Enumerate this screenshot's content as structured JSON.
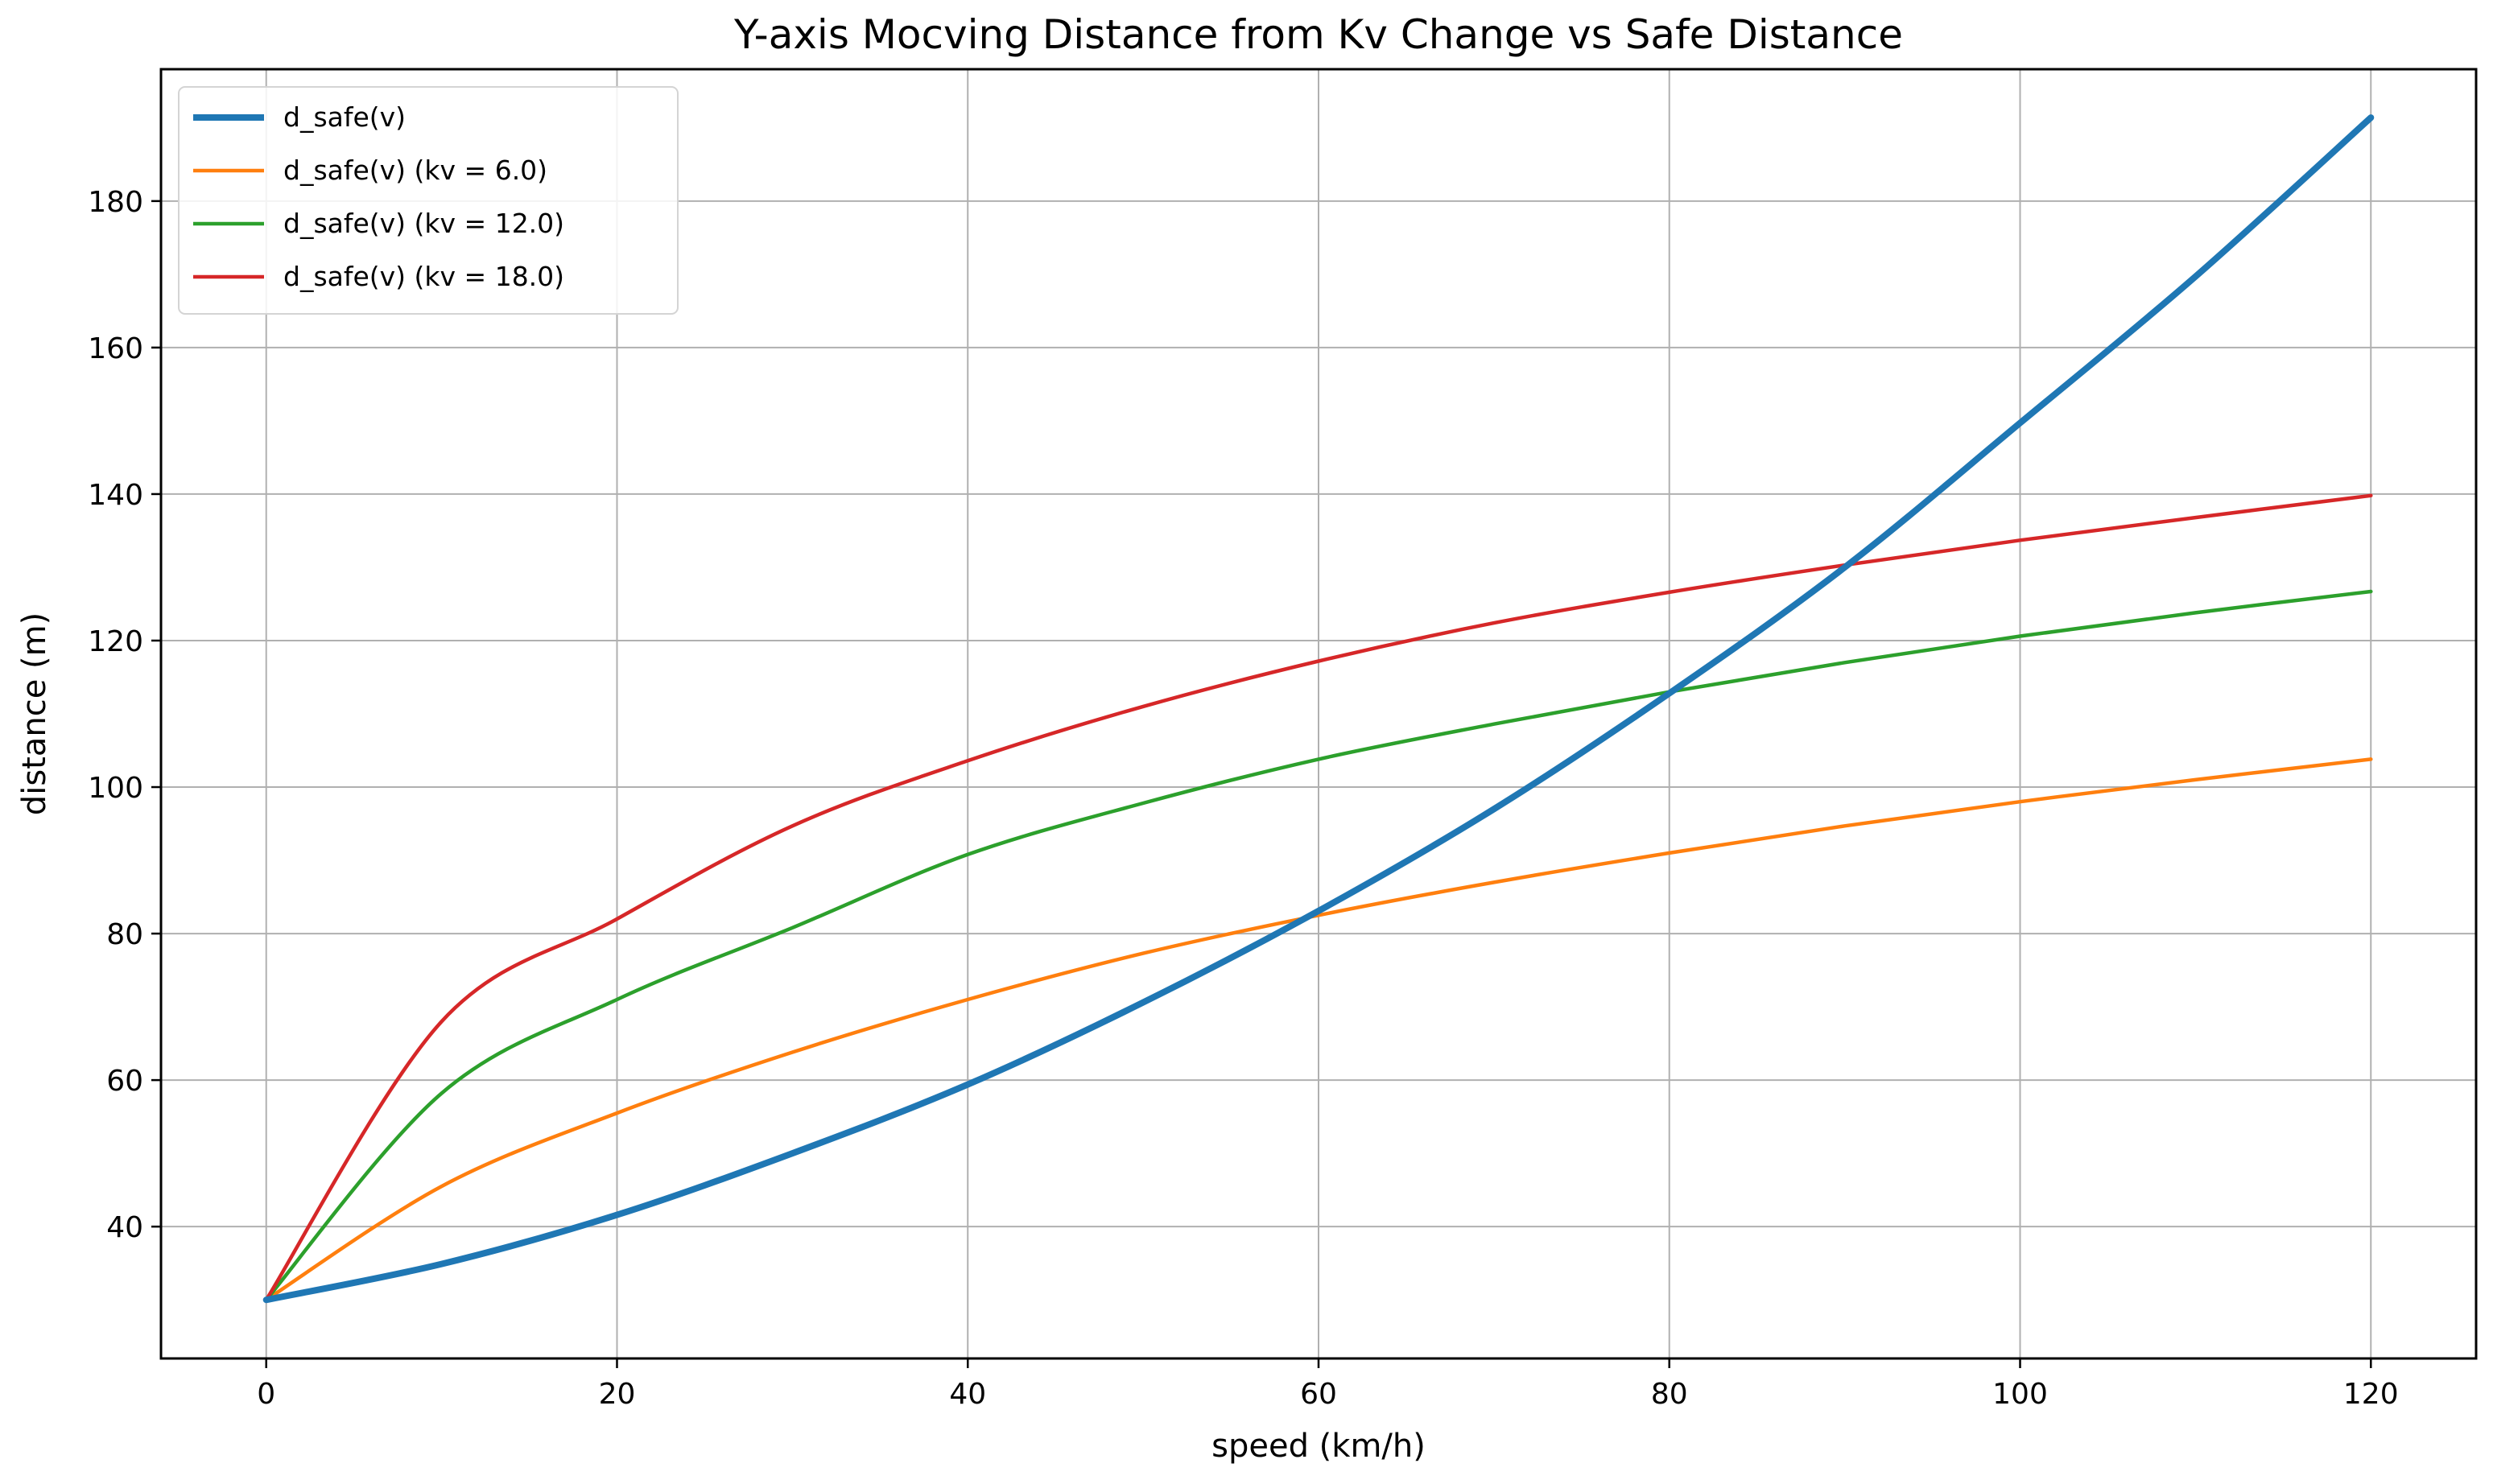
{
  "chart_data": {
    "type": "line",
    "title": "Y-axis Mocving Distance from Kv Change vs Safe Distance",
    "xlabel": "speed (km/h)",
    "ylabel": "distance (m)",
    "xlim": [
      -6,
      126
    ],
    "ylim": [
      22,
      198
    ],
    "xticks": [
      0,
      20,
      40,
      60,
      80,
      100,
      120
    ],
    "yticks": [
      40,
      60,
      80,
      100,
      120,
      140,
      160,
      180
    ],
    "grid": true,
    "legend_position": "top-left",
    "x": [
      0,
      10,
      20,
      30,
      40,
      50,
      60,
      70,
      80,
      90,
      100,
      110,
      120
    ],
    "series": [
      {
        "name": "d_safe(v)",
        "color": "#1f77b4",
        "line_width": "thick",
        "values": [
          30,
          34.9,
          41.6,
          50,
          59.4,
          70.6,
          83.1,
          97,
          112.8,
          130,
          149.7,
          169.7,
          191.4
        ]
      },
      {
        "name": "d_safe(v) (kv = 6.0)",
        "color": "#ff7f0e",
        "line_width": "normal",
        "values": [
          30,
          45.5,
          55.5,
          63.8,
          71,
          77.3,
          82.5,
          87,
          91,
          94.7,
          98,
          101,
          103.8
        ]
      },
      {
        "name": "d_safe(v) (kv = 12.0)",
        "color": "#2ca02c",
        "line_width": "normal",
        "values": [
          30,
          58.2,
          71,
          80.8,
          90.8,
          97.8,
          103.8,
          108.6,
          113,
          117,
          120.6,
          123.8,
          126.7
        ]
      },
      {
        "name": "d_safe(v) (kv = 18.0)",
        "color": "#d62728",
        "line_width": "normal",
        "values": [
          30,
          68,
          82,
          94.7,
          103.6,
          111,
          117.2,
          122.4,
          126.6,
          130.3,
          133.7,
          136.8,
          139.8
        ]
      }
    ]
  }
}
